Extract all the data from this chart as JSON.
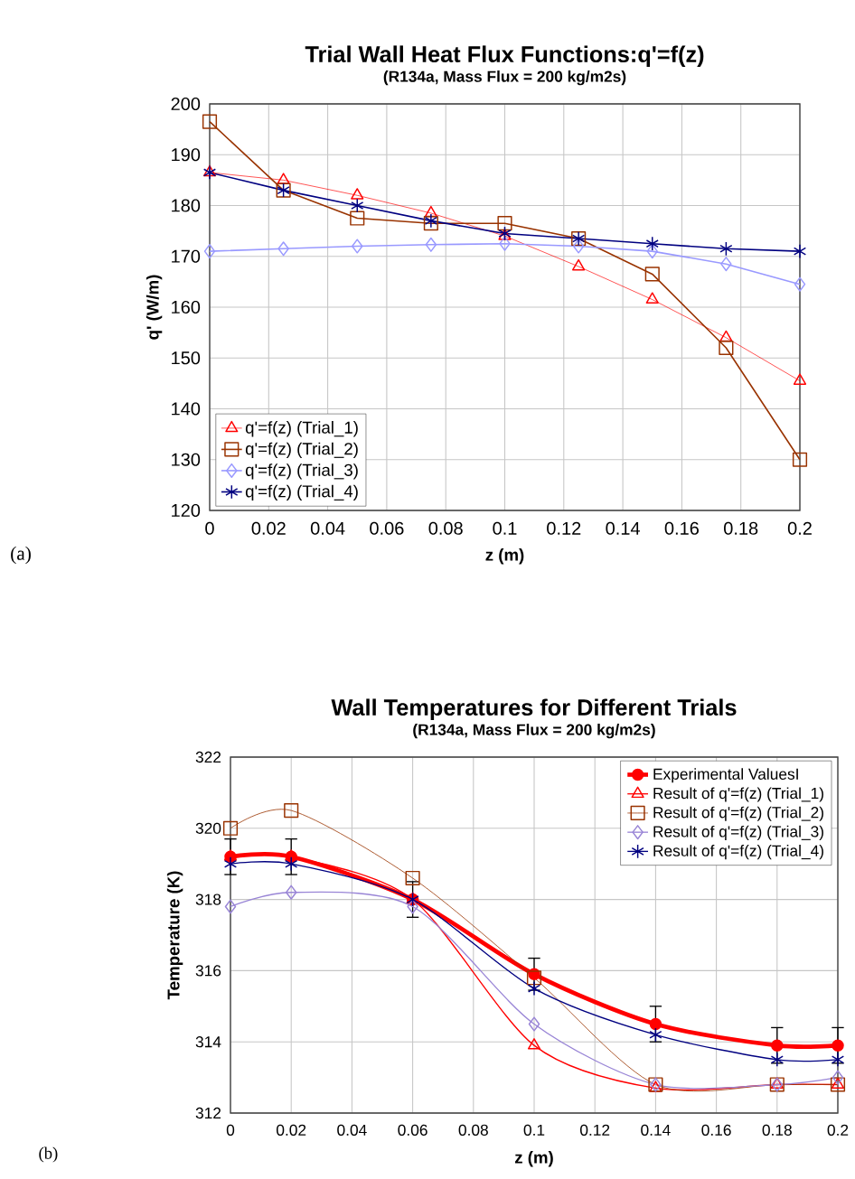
{
  "chart_data": [
    {
      "type": "line",
      "title": "Trial Wall Heat Flux Functions:q'=f(z)",
      "subtitle": "(R134a, Mass Flux = 200 kg/m2s)",
      "xlabel": "z (m)",
      "ylabel": "q' (W/m)",
      "x": [
        0,
        0.025,
        0.05,
        0.075,
        0.1,
        0.125,
        0.15,
        0.175,
        0.2
      ],
      "series": [
        {
          "name": "q'=f(z) (Trial_1)",
          "color": "#ff0000",
          "marker": "triangle",
          "values": [
            186.5,
            185,
            182,
            178.5,
            174,
            168,
            161.5,
            154,
            145.5
          ]
        },
        {
          "name": "q'=f(z) (Trial_2)",
          "color": "#993300",
          "marker": "square",
          "values": [
            196.5,
            183,
            177.5,
            176.5,
            176.5,
            173.5,
            166.5,
            152,
            130
          ]
        },
        {
          "name": "q'=f(z) (Trial_3)",
          "color": "#9999ff",
          "marker": "diamond",
          "values": [
            171,
            171.5,
            172,
            172.3,
            172.5,
            172,
            171,
            168.5,
            164.5
          ]
        },
        {
          "name": "q'=f(z) (Trial_4)",
          "color": "#000080",
          "marker": "cross",
          "values": [
            186.5,
            183,
            180,
            177,
            174.5,
            173.5,
            172.5,
            171.5,
            171
          ]
        }
      ],
      "xlim": [
        0,
        0.2
      ],
      "ylim": [
        120,
        200
      ],
      "xticks": [
        0,
        0.02,
        0.04,
        0.06,
        0.08,
        0.1,
        0.12,
        0.14,
        0.16,
        0.18,
        0.2
      ],
      "yticks": [
        120,
        130,
        140,
        150,
        160,
        170,
        180,
        190,
        200
      ],
      "grid": true,
      "legend": "bottom left",
      "annotations": [
        "(a)"
      ]
    },
    {
      "type": "line",
      "title": "Wall Temperatures for Different Trials",
      "subtitle": "(R134a, Mass Flux = 200 kg/m2s)",
      "xlabel": "z (m)",
      "ylabel": "Temperature (K)",
      "x": [
        0,
        0.02,
        0.06,
        0.1,
        0.14,
        0.18,
        0.2
      ],
      "series": [
        {
          "name": "Experimental ValuesI",
          "color": "#ff0000",
          "marker": "circle",
          "values": [
            319.2,
            319.2,
            318,
            315.9,
            314.5,
            313.9,
            313.9
          ],
          "errors": [
            0.5,
            0.5,
            0.5,
            0.45,
            0.5,
            0.5,
            0.5
          ]
        },
        {
          "name": "Result of q'=f(z) (Trial_1)",
          "color": "#ff0000",
          "marker": "triangle",
          "values": [
            319.2,
            319.2,
            318,
            313.9,
            312.7,
            312.8,
            312.8
          ]
        },
        {
          "name": "Result of q'=f(z) (Trial_2)",
          "color": "#993300",
          "marker": "square",
          "values": [
            320,
            320.5,
            318.6,
            315.8,
            312.8,
            312.8,
            312.8
          ]
        },
        {
          "name": "Result of q'=f(z) (Trial_3)",
          "color": "#9985d6",
          "marker": "diamond",
          "values": [
            317.8,
            318.2,
            317.8,
            314.5,
            312.8,
            312.8,
            313.0
          ]
        },
        {
          "name": "Result of q'=f(z) (Trial_4)",
          "color": "#000080",
          "marker": "cross",
          "values": [
            319.0,
            319.0,
            318.0,
            315.5,
            314.2,
            313.5,
            313.5
          ]
        }
      ],
      "xlim": [
        0,
        0.2
      ],
      "ylim": [
        312,
        322
      ],
      "xticks": [
        0,
        0.02,
        0.04,
        0.06,
        0.08,
        0.1,
        0.12,
        0.14,
        0.16,
        0.18,
        0.2
      ],
      "yticks": [
        312,
        314,
        316,
        318,
        320,
        322
      ],
      "grid": true,
      "legend": "top right",
      "annotations": [
        "(b)"
      ]
    }
  ]
}
